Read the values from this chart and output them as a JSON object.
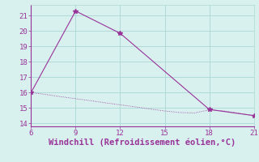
{
  "line1_x": [
    6,
    9,
    12,
    18,
    21
  ],
  "line1_y": [
    16.0,
    21.3,
    19.85,
    14.9,
    14.5
  ],
  "line2_x": [
    6,
    7,
    8,
    9,
    10,
    11,
    12,
    13,
    14,
    15,
    16,
    17,
    18,
    19,
    20,
    21
  ],
  "line2_y": [
    16.0,
    15.87,
    15.73,
    15.6,
    15.47,
    15.33,
    15.2,
    15.07,
    14.93,
    14.8,
    14.7,
    14.67,
    14.87,
    14.8,
    14.65,
    14.5
  ],
  "line_color": "#993399",
  "bg_color": "#d8f0ee",
  "grid_color": "#aad8d4",
  "border_color": "#993399",
  "xlabel": "Windchill (Refroidissement éolien,°C)",
  "xlim": [
    6,
    21
  ],
  "ylim": [
    13.8,
    21.7
  ],
  "xticks": [
    6,
    9,
    12,
    15,
    18,
    21
  ],
  "yticks": [
    14,
    15,
    16,
    17,
    18,
    19,
    20,
    21
  ],
  "xlabel_color": "#993399",
  "tick_color": "#993399",
  "font_size": 6.5,
  "xlabel_font_size": 7.5,
  "marker": "*",
  "marker_size": 4,
  "line_width": 0.8
}
